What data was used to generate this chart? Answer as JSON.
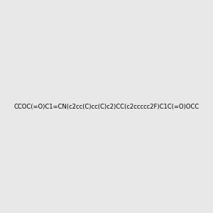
{
  "smiles": "CCOC(=O)C1=CN(c2cc(C)cc(C)c2)CC(c2ccccc2F)C1C(=O)OCC",
  "title": "",
  "bg_color": "#e8e8e8",
  "bond_color": "#000000",
  "atom_colors": {
    "N": "#0000ff",
    "O": "#ff0000",
    "F": "#ff00ff"
  },
  "fig_width": 3.0,
  "fig_height": 3.0,
  "dpi": 100
}
